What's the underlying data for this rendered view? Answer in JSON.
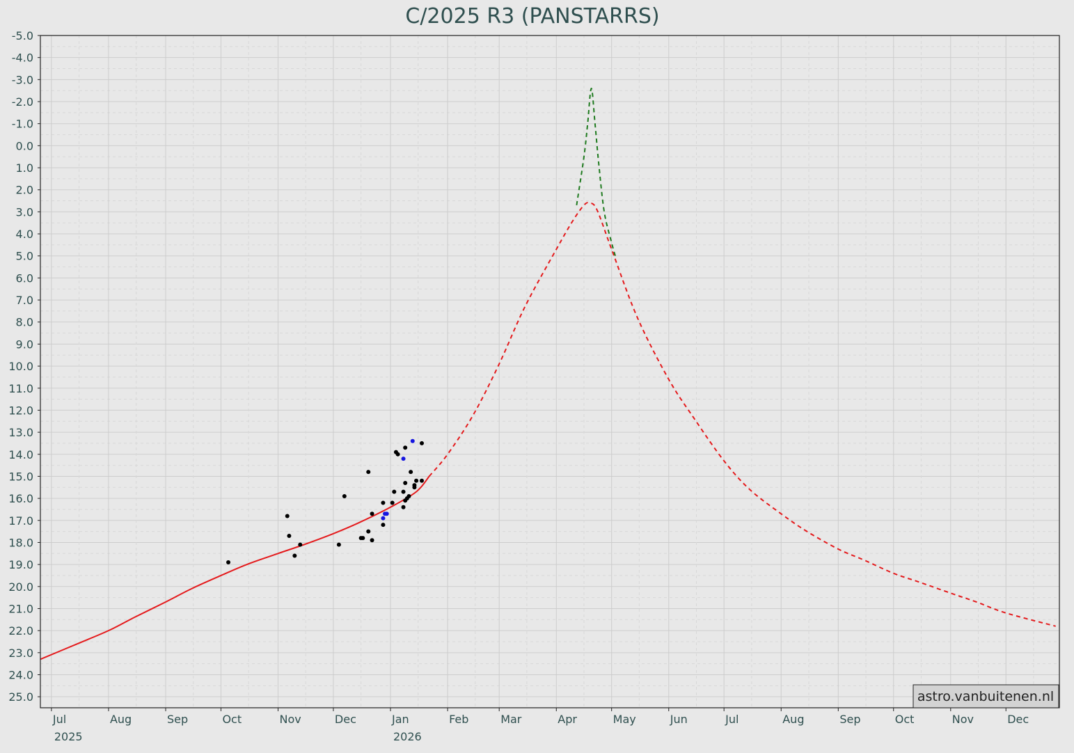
{
  "chart_data": {
    "type": "line",
    "title": "C/2025 R3 (PANSTARRS)",
    "xlabel": "",
    "ylabel": "",
    "x_axis": {
      "type": "date",
      "range": [
        "2025-06-25",
        "2026-12-30"
      ]
    },
    "y_axis": {
      "range": [
        -5.0,
        25.5
      ],
      "inverted": true,
      "major_step": 1.0
    },
    "grid": true,
    "y_tick_labels": [
      "-5.0",
      "-4.0",
      "-3.0",
      "-2.0",
      "-1.0",
      "0.0",
      "1.0",
      "2.0",
      "3.0",
      "4.0",
      "5.0",
      "6.0",
      "7.0",
      "8.0",
      "9.0",
      "10.0",
      "11.0",
      "12.0",
      "13.0",
      "14.0",
      "15.0",
      "16.0",
      "17.0",
      "18.0",
      "19.0",
      "20.0",
      "21.0",
      "22.0",
      "23.0",
      "24.0",
      "25.0"
    ],
    "x_ticks": [
      {
        "date": "2025-07-01",
        "label": "Jul",
        "year": "2025"
      },
      {
        "date": "2025-08-01",
        "label": "Aug",
        "year": ""
      },
      {
        "date": "2025-09-01",
        "label": "Sep",
        "year": ""
      },
      {
        "date": "2025-10-01",
        "label": "Oct",
        "year": ""
      },
      {
        "date": "2025-11-01",
        "label": "Nov",
        "year": ""
      },
      {
        "date": "2025-12-01",
        "label": "Dec",
        "year": ""
      },
      {
        "date": "2026-01-01",
        "label": "Jan",
        "year": "2026"
      },
      {
        "date": "2026-02-01",
        "label": "Feb",
        "year": ""
      },
      {
        "date": "2026-03-01",
        "label": "Mar",
        "year": ""
      },
      {
        "date": "2026-04-01",
        "label": "Apr",
        "year": ""
      },
      {
        "date": "2026-05-01",
        "label": "May",
        "year": ""
      },
      {
        "date": "2026-06-01",
        "label": "Jun",
        "year": ""
      },
      {
        "date": "2026-07-01",
        "label": "Jul",
        "year": ""
      },
      {
        "date": "2026-08-01",
        "label": "Aug",
        "year": ""
      },
      {
        "date": "2026-09-01",
        "label": "Sep",
        "year": ""
      },
      {
        "date": "2026-10-01",
        "label": "Oct",
        "year": ""
      },
      {
        "date": "2026-11-01",
        "label": "Nov",
        "year": ""
      },
      {
        "date": "2026-12-01",
        "label": "Dec",
        "year": ""
      }
    ],
    "series": [
      {
        "style": "solid",
        "color": "#e41a1c",
        "points": [
          [
            "2025-06-25",
            23.3
          ],
          [
            "2025-07-15",
            22.6
          ],
          [
            "2025-08-01",
            22.0
          ],
          [
            "2025-08-15",
            21.4
          ],
          [
            "2025-09-01",
            20.7
          ],
          [
            "2025-09-15",
            20.1
          ],
          [
            "2025-10-01",
            19.5
          ],
          [
            "2025-10-15",
            19.0
          ],
          [
            "2025-11-01",
            18.5
          ],
          [
            "2025-11-15",
            18.1
          ],
          [
            "2025-12-01",
            17.6
          ],
          [
            "2025-12-15",
            17.1
          ],
          [
            "2026-01-01",
            16.4
          ],
          [
            "2026-01-15",
            15.7
          ],
          [
            "2026-01-22",
            15.0
          ]
        ]
      },
      {
        "style": "dashed",
        "color": "#e41a1c",
        "points": [
          [
            "2026-01-22",
            15.0
          ],
          [
            "2026-02-01",
            14.0
          ],
          [
            "2026-02-15",
            12.2
          ],
          [
            "2026-03-01",
            9.9
          ],
          [
            "2026-03-15",
            7.3
          ],
          [
            "2026-04-01",
            4.7
          ],
          [
            "2026-04-10",
            3.4
          ],
          [
            "2026-04-16",
            2.7
          ],
          [
            "2026-04-19",
            2.6
          ],
          [
            "2026-04-23",
            2.9
          ],
          [
            "2026-05-01",
            4.7
          ],
          [
            "2026-05-15",
            7.8
          ],
          [
            "2026-06-01",
            10.6
          ],
          [
            "2026-06-15",
            12.4
          ],
          [
            "2026-07-01",
            14.3
          ],
          [
            "2026-07-15",
            15.6
          ],
          [
            "2026-08-01",
            16.7
          ],
          [
            "2026-08-15",
            17.5
          ],
          [
            "2026-09-01",
            18.3
          ],
          [
            "2026-09-15",
            18.8
          ],
          [
            "2026-10-01",
            19.4
          ],
          [
            "2026-10-15",
            19.8
          ],
          [
            "2026-11-01",
            20.3
          ],
          [
            "2026-11-15",
            20.7
          ],
          [
            "2026-12-01",
            21.2
          ],
          [
            "2026-12-28",
            21.8
          ]
        ]
      },
      {
        "style": "dashed",
        "color": "#1e7a1e",
        "points": [
          [
            "2026-04-12",
            2.7
          ],
          [
            "2026-04-16",
            0.5
          ],
          [
            "2026-04-18",
            -1.0
          ],
          [
            "2026-04-20",
            -2.6
          ],
          [
            "2026-04-22",
            -1.0
          ],
          [
            "2026-04-24",
            0.8
          ],
          [
            "2026-04-27",
            3.0
          ],
          [
            "2026-05-01",
            4.4
          ],
          [
            "2026-05-03",
            5.0
          ]
        ]
      }
    ],
    "observations": [
      {
        "color": "#000000",
        "points": [
          [
            "2025-10-05",
            18.9
          ],
          [
            "2025-11-06",
            16.8
          ],
          [
            "2025-11-07",
            17.7
          ],
          [
            "2025-11-10",
            18.6
          ],
          [
            "2025-11-13",
            18.1
          ],
          [
            "2025-12-04",
            18.1
          ],
          [
            "2025-12-07",
            15.9
          ],
          [
            "2025-12-16",
            17.8
          ],
          [
            "2025-12-17",
            17.8
          ],
          [
            "2025-12-20",
            17.5
          ],
          [
            "2025-12-20",
            14.8
          ],
          [
            "2025-12-22",
            16.7
          ],
          [
            "2025-12-22",
            17.9
          ],
          [
            "2025-12-28",
            17.2
          ],
          [
            "2025-12-28",
            16.2
          ],
          [
            "2026-01-02",
            16.2
          ],
          [
            "2026-01-03",
            15.7
          ],
          [
            "2026-01-04",
            13.9
          ],
          [
            "2026-01-05",
            14.0
          ],
          [
            "2026-01-08",
            15.7
          ],
          [
            "2026-01-08",
            16.4
          ],
          [
            "2026-01-09",
            13.7
          ],
          [
            "2026-01-09",
            15.3
          ],
          [
            "2026-01-09",
            16.1
          ],
          [
            "2026-01-10",
            16.0
          ],
          [
            "2026-01-11",
            15.9
          ],
          [
            "2026-01-12",
            14.8
          ],
          [
            "2026-01-14",
            15.5
          ],
          [
            "2026-01-14",
            15.4
          ],
          [
            "2026-01-15",
            15.2
          ],
          [
            "2026-01-18",
            15.2
          ],
          [
            "2026-01-18",
            13.5
          ]
        ]
      },
      {
        "color": "#1515e0",
        "points": [
          [
            "2025-12-28",
            16.9
          ],
          [
            "2025-12-29",
            16.7
          ],
          [
            "2025-12-30",
            16.7
          ],
          [
            "2026-01-08",
            14.2
          ],
          [
            "2026-01-13",
            13.4
          ]
        ]
      }
    ]
  },
  "credit": "astro.vanbuitenen.nl",
  "colors": {
    "background": "#e8e8e8",
    "plot_border": "#222222",
    "grid_major": "#cfcfcf",
    "grid_minor": "#d9d9d9",
    "text": "#2f4f4f"
  }
}
